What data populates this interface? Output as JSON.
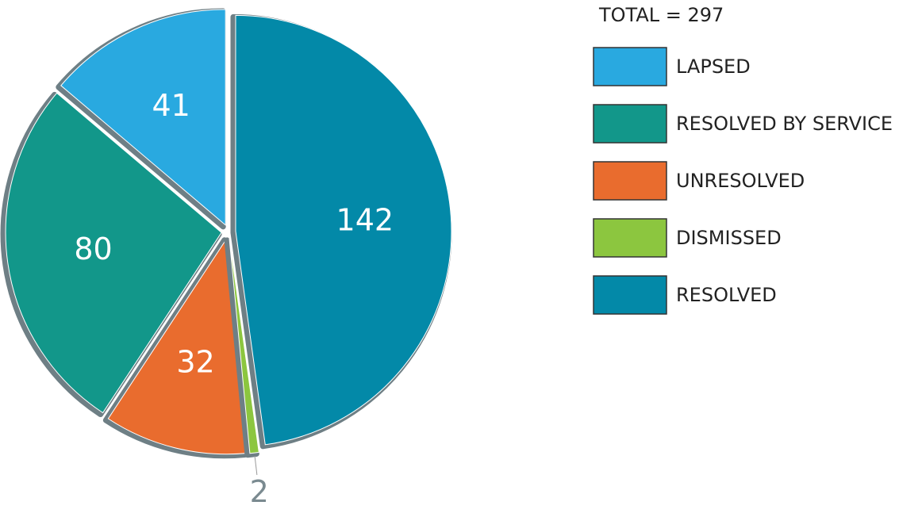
{
  "chart_data": {
    "type": "pie",
    "title": "TOTAL = 297",
    "categories": [
      "LAPSED",
      "RESOLVED BY SERVICE",
      "UNRESOLVED",
      "DISMISSED",
      "RESOLVED"
    ],
    "values": [
      41,
      80,
      32,
      2,
      142
    ],
    "colors": [
      "#29a9e0",
      "#12978a",
      "#e96c2e",
      "#8cc63f",
      "#0389a8"
    ],
    "legend": "right"
  }
}
